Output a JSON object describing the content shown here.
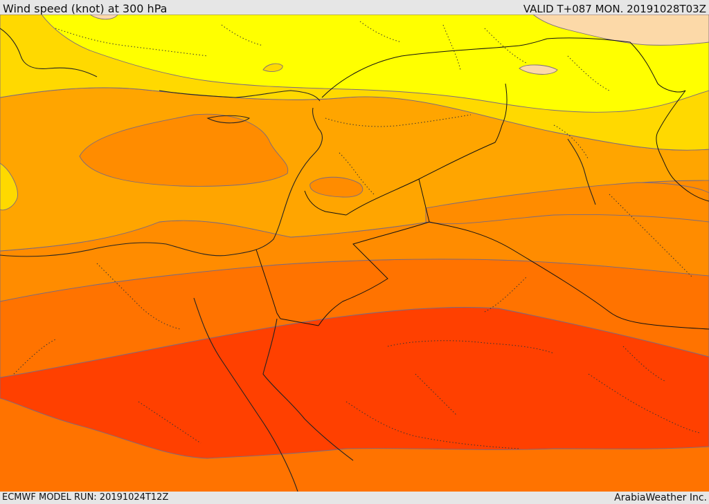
{
  "header": {
    "title": "Wind speed (knot) at 300 hPa",
    "valid": "VALID T+087 MON. 20191028T03Z"
  },
  "footer": {
    "model_run": "ECMWF MODEL RUN: 20191024T12Z",
    "credit": "ArabiaWeather Inc."
  },
  "colors": {
    "band_pale": "#fcd9a8",
    "band_yellow": "#ffff00",
    "band_yellow_orange": "#ffd900",
    "band_light_orange": "#ffa500",
    "band_orange": "#ff8c00",
    "band_dark_orange": "#ff7300",
    "band_red_orange": "#ff4000"
  }
}
